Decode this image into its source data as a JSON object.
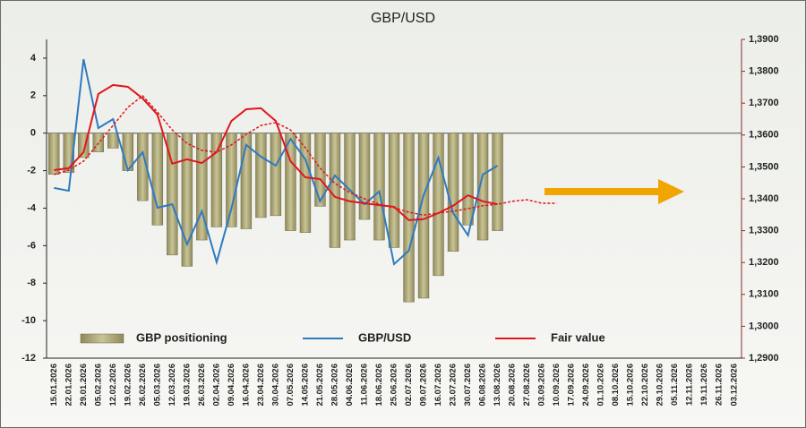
{
  "chart_data": {
    "type": "bar",
    "title": "GBP/USD",
    "categories": [
      "15.01.2026",
      "22.01.2026",
      "29.01.2026",
      "05.02.2026",
      "12.02.2026",
      "19.02.2026",
      "26.02.2026",
      "05.03.2026",
      "12.03.2026",
      "19.03.2026",
      "26.03.2026",
      "02.04.2026",
      "09.04.2026",
      "16.04.2026",
      "23.04.2026",
      "30.04.2026",
      "07.05.2026",
      "14.05.2026",
      "21.05.2026",
      "28.05.2026",
      "04.06.2026",
      "11.06.2026",
      "18.06.2026",
      "25.06.2026",
      "02.07.2026",
      "09.07.2026",
      "16.07.2026",
      "23.07.2026",
      "30.07.2026",
      "06.08.2026",
      "13.08.2026",
      "20.08.2026",
      "27.08.2026",
      "03.09.2026",
      "10.09.2026",
      "17.09.2026",
      "24.09.2026",
      "01.10.2026",
      "08.10.2026",
      "15.10.2026",
      "22.10.2026",
      "29.10.2026",
      "05.11.2026",
      "12.11.2026",
      "19.11.2026",
      "26.11.2026",
      "03.12.2026"
    ],
    "series": [
      {
        "name": "GBP positioning",
        "type": "bar",
        "color": "#b3ad7e",
        "values": [
          -2.2,
          -2.1,
          -1.3,
          -1.0,
          -0.8,
          -2.0,
          -3.6,
          -4.9,
          -6.5,
          -7.1,
          -5.7,
          -5.0,
          -5.0,
          -5.1,
          -4.5,
          -4.4,
          -5.2,
          -5.3,
          -3.9,
          -6.1,
          -5.7,
          -4.6,
          -5.7,
          -6.1,
          -9.0,
          -8.8,
          -7.6,
          -6.3,
          -4.9,
          -5.7,
          -5.2,
          null,
          null,
          null,
          null,
          null,
          null,
          null,
          null,
          null,
          null,
          null,
          null,
          null,
          null,
          null,
          null
        ]
      },
      {
        "name": "GBP/USD",
        "type": "line",
        "axis": "y2",
        "color": "#2f7ac0",
        "values": [
          1.3434,
          1.3425,
          1.3838,
          1.3622,
          1.365,
          1.349,
          1.3546,
          1.3372,
          1.3383,
          1.3257,
          1.3361,
          1.3201,
          1.3369,
          1.3569,
          1.3532,
          1.3504,
          1.3588,
          1.3524,
          1.3392,
          1.3473,
          1.3428,
          1.3383,
          1.3423,
          1.3195,
          1.3237,
          1.3411,
          1.3529,
          1.3355,
          1.3285,
          1.3476,
          1.3504,
          null,
          null,
          null,
          null,
          null,
          null,
          null,
          null,
          null,
          null,
          null,
          null,
          null,
          null,
          null,
          null
        ]
      },
      {
        "name": "Fair value",
        "type": "line",
        "axis": "y2",
        "color": "#e0161b",
        "values": [
          1.349,
          1.3496,
          1.3546,
          1.3729,
          1.3757,
          1.3751,
          1.3715,
          1.3664,
          1.351,
          1.3524,
          1.3512,
          1.3546,
          1.3644,
          1.3681,
          1.3684,
          1.3644,
          1.3518,
          1.3467,
          1.3462,
          1.3406,
          1.3392,
          1.3386,
          1.338,
          1.3375,
          1.3333,
          1.3336,
          1.3355,
          1.3378,
          1.3411,
          1.3392,
          1.3383,
          null,
          null,
          null,
          null,
          null,
          null,
          null,
          null,
          null,
          null,
          null,
          null,
          null,
          null,
          null,
          null
        ]
      },
      {
        "type": "line",
        "axis": "y2",
        "color": "#e0161b",
        "dash": true,
        "values": [
          1.3476,
          1.349,
          1.3518,
          1.3574,
          1.363,
          1.3687,
          1.3723,
          1.3672,
          1.3616,
          1.3574,
          1.3552,
          1.3546,
          1.3569,
          1.3602,
          1.363,
          1.3639,
          1.3616,
          1.356,
          1.3496,
          1.3448,
          1.342,
          1.34,
          1.3383,
          1.3372,
          1.3358,
          1.3349,
          1.3355,
          1.3361,
          1.3369,
          1.3378,
          1.3383,
          1.3392,
          1.3397,
          1.3386,
          1.3386,
          null,
          null,
          null,
          null,
          null,
          null,
          null,
          null,
          null,
          null,
          null,
          null
        ]
      }
    ],
    "ylim": [
      -12,
      5
    ],
    "yticks": [
      4,
      2,
      0,
      -2,
      -4,
      -6,
      -8,
      -10,
      -12
    ],
    "y2lim": [
      1.29,
      1.39
    ],
    "y2ticks": [
      {
        "value": 1.39,
        "label": "1,3900"
      },
      {
        "value": 1.38,
        "label": "1,3800"
      },
      {
        "value": 1.37,
        "label": "1,3700"
      },
      {
        "value": 1.36,
        "label": "1,3600"
      },
      {
        "value": 1.35,
        "label": "1,3500"
      },
      {
        "value": 1.34,
        "label": "1,3400"
      },
      {
        "value": 1.33,
        "label": "1,3300"
      },
      {
        "value": 1.32,
        "label": "1,3200"
      },
      {
        "value": 1.31,
        "label": "1,3100"
      },
      {
        "value": 1.3,
        "label": "1,3000"
      },
      {
        "value": 1.29,
        "label": "1,2900"
      }
    ],
    "grid": false
  }
}
